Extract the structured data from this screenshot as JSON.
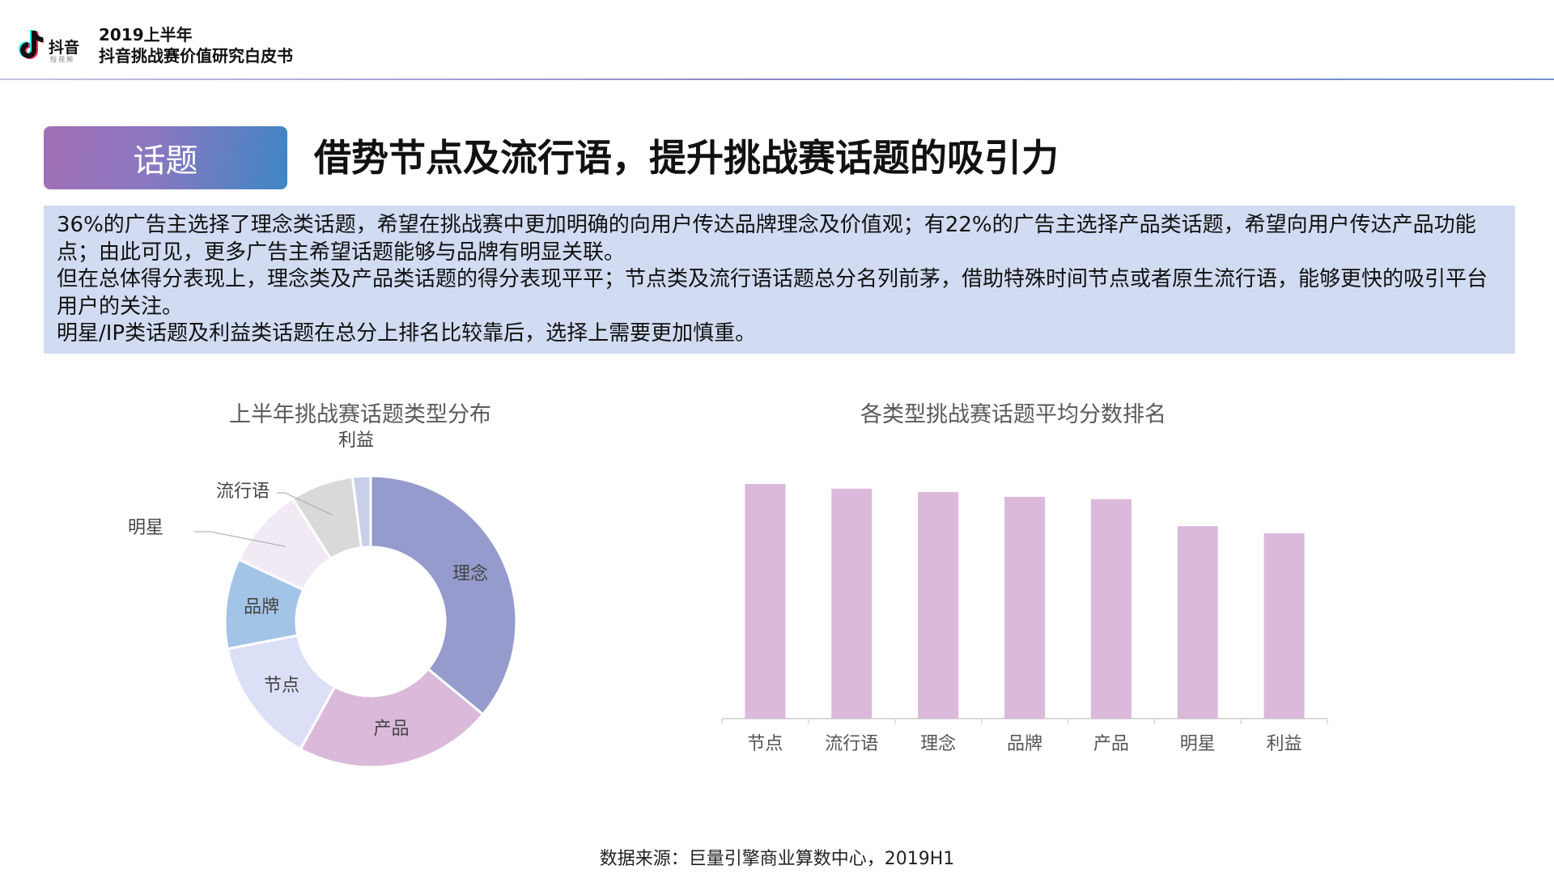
{
  "header": {
    "logo_text": "抖音",
    "logo_subtext": "短视频",
    "title_line1": "2019上半年",
    "title_line2": "抖音挑战赛价值研究白皮书"
  },
  "section": {
    "tag": "话题",
    "heading": "借势节点及流行语，提升挑战赛话题的吸引力"
  },
  "summary": {
    "para1": "36%的广告主选择了理念类话题，希望在挑战赛中更加明确的向用户传达品牌理念及价值观；有22%的广告主选择产品类话题，希望向用户传达产品功能点；由此可见，更多广告主希望话题能够与品牌有明显关联。",
    "para2": "但在总体得分表现上，理念类及产品类话题的得分表现平平；节点类及流行语话题总分名列前茅，借助特殊时间节点或者原生流行语，能够更快的吸引平台用户的关注。",
    "para3": "明星/IP类话题及利益类话题在总分上排名比较靠后，选择上需要更加慎重。"
  },
  "chart_data": [
    {
      "type": "pie",
      "title": "上半年挑战赛话题类型分布",
      "categories": [
        "理念",
        "产品",
        "节点",
        "品牌",
        "明星",
        "流行语",
        "利益"
      ],
      "values": [
        36,
        22,
        14,
        10,
        9,
        7,
        2
      ],
      "colors": [
        "#959bcd",
        "#dbb9da",
        "#dce0f7",
        "#a2c4e7",
        "#f1eaf4",
        "#d9d9d9",
        "#c9cfe9"
      ],
      "donut": true
    },
    {
      "type": "bar",
      "title": "各类型挑战赛话题平均分数排名",
      "categories": [
        "节点",
        "流行语",
        "理念",
        "品牌",
        "产品",
        "明星",
        "利益"
      ],
      "values": [
        100,
        98,
        96.5,
        94.5,
        93.5,
        82,
        79
      ],
      "ylim": [
        0,
        100
      ],
      "bar_color": "#dbb9da",
      "axis_labels_shown": false
    }
  ],
  "source": "数据来源：巨量引擎商业算数中心，2019H1"
}
